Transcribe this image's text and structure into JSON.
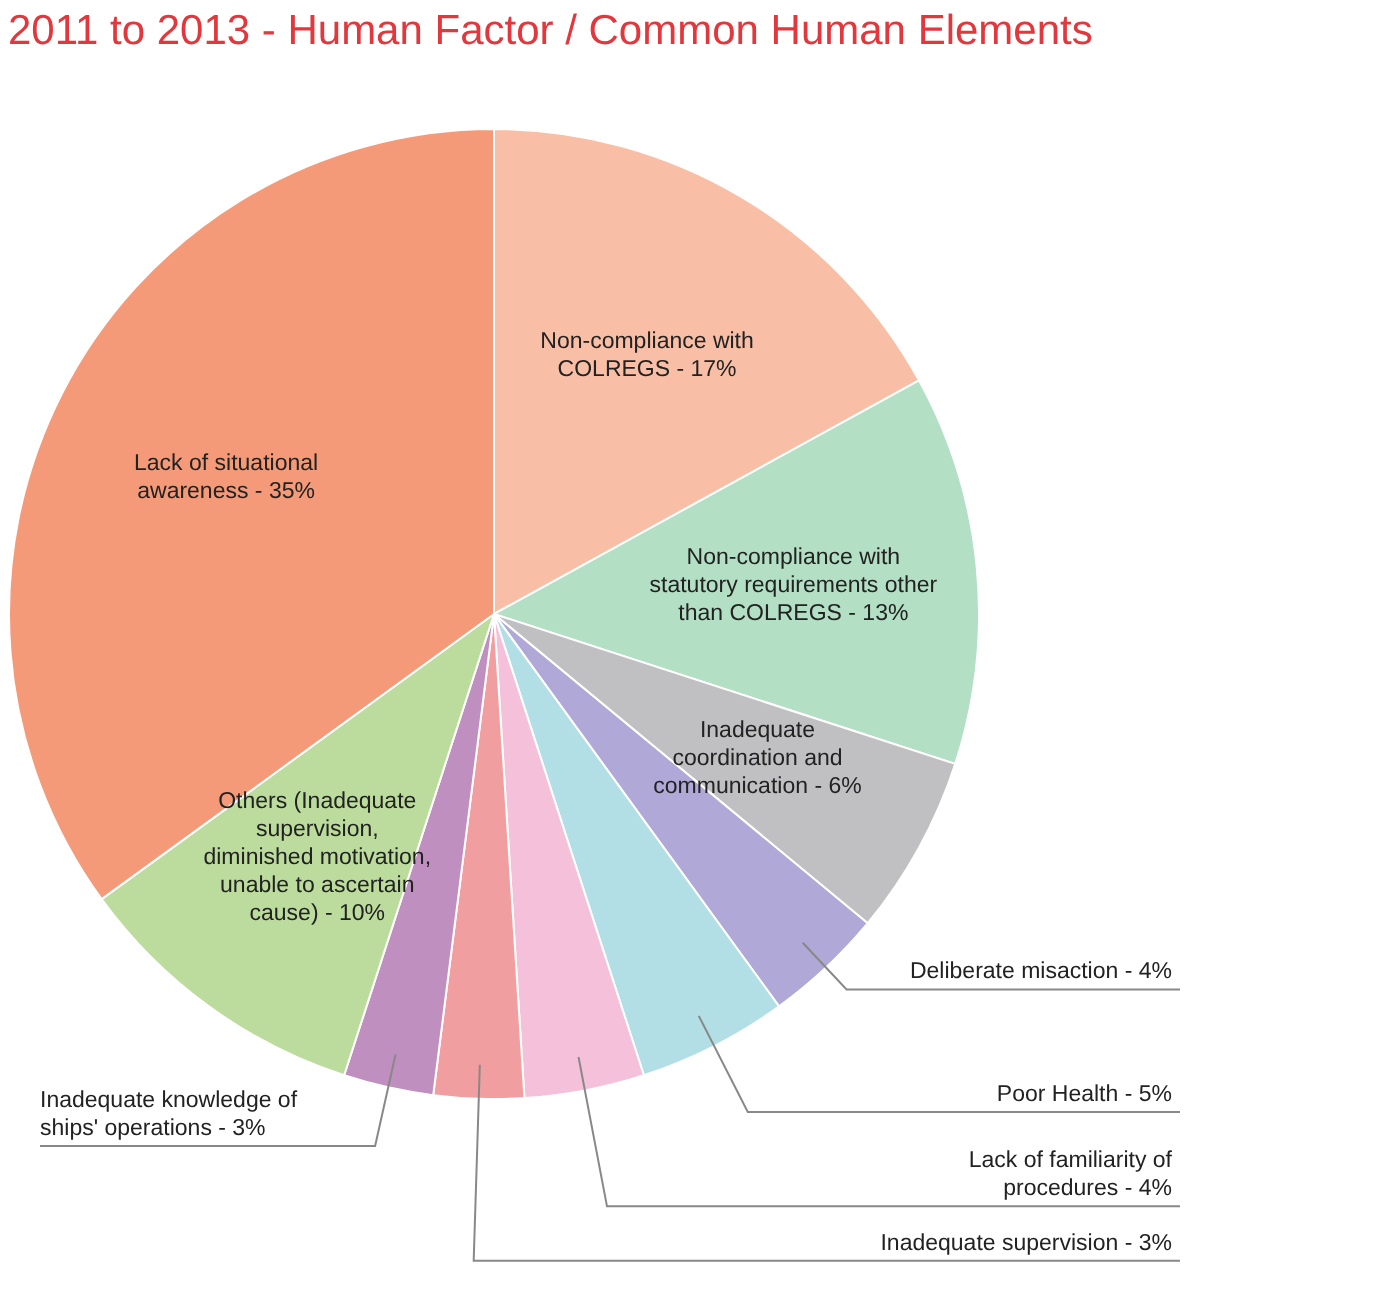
{
  "chart_data": {
    "type": "pie",
    "title": "2011 to 2013 - Human Factor / Common Human Elements",
    "categories": [
      "Non-compliance with COLREGS - 17%",
      "Non-compliance with statutory requirements other than COLREGS - 13%",
      "Inadequate coordination and communication - 6%",
      "Deliberate misaction - 4%",
      "Poor Health - 5%",
      "Lack of familiarity of procedures - 4%",
      "Inadequate supervision - 3%",
      "Inadequate knowledge of ships' operations - 3%",
      "Others (Inadequate supervision, diminished motivation, unable to ascertain cause) - 10%",
      "Lack of situational awareness - 35%"
    ],
    "values": [
      17,
      13,
      6,
      4,
      5,
      4,
      3,
      3,
      10,
      35
    ],
    "colors": [
      "#f9bfa6",
      "#b3dfc4",
      "#c0c0c2",
      "#b0a8d6",
      "#b2dfe6",
      "#f5c0da",
      "#f19ea0",
      "#bf8fc0",
      "#bcdc9d",
      "#f59a78"
    ],
    "legend": false
  }
}
